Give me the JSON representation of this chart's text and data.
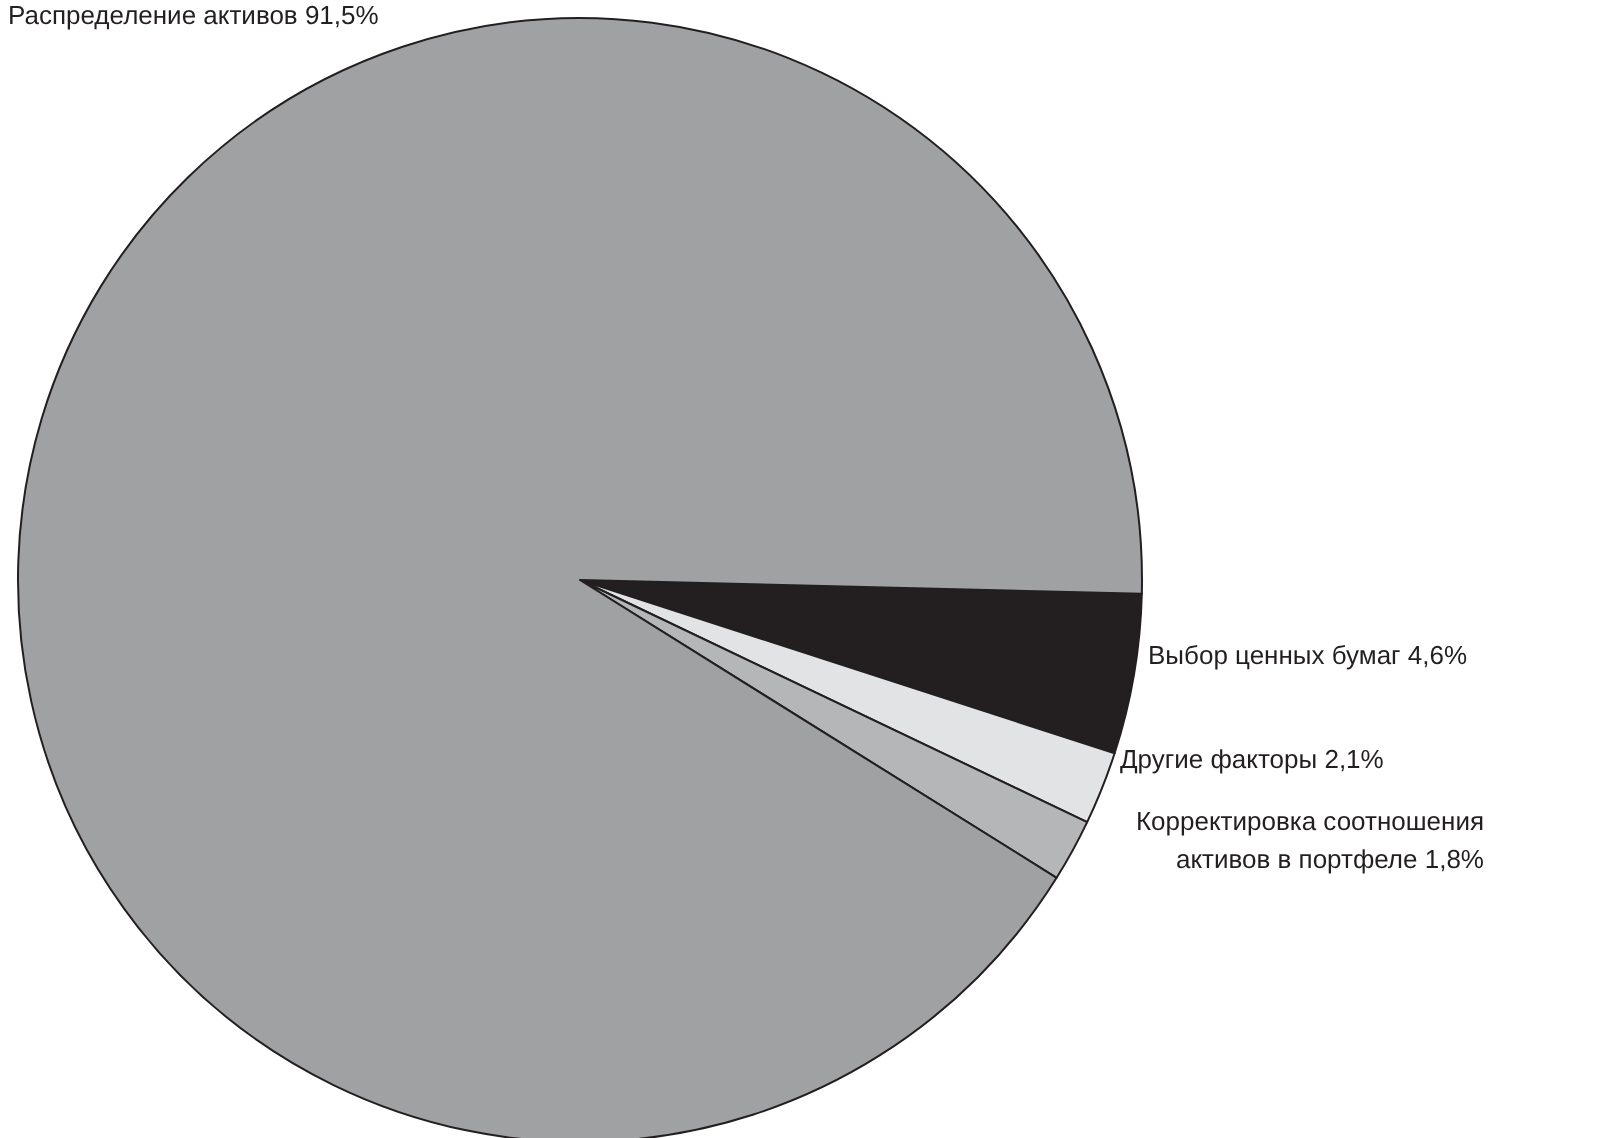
{
  "chart_data": {
    "type": "pie",
    "categories": [
      "Выбор ценных бумаг",
      "Другие факторы",
      "Корректировка соотношения активов в портфеле",
      "Распределение активов"
    ],
    "values": [
      4.6,
      2.1,
      1.8,
      91.5
    ],
    "colors": [
      "#231f20",
      "#e2e3e4",
      "#b5b6b8",
      "#a0a1a3"
    ],
    "value_labels": [
      "4,6%",
      "2,1%",
      "1,8%",
      "91,5%"
    ]
  }
}
